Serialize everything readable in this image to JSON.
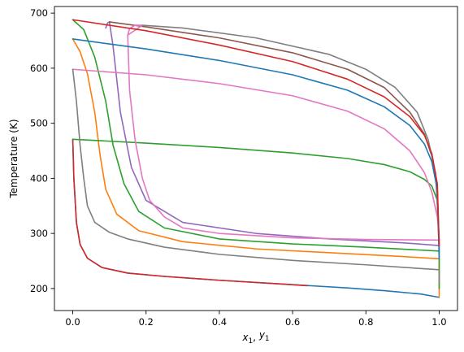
{
  "chart_data": {
    "type": "line",
    "title": "",
    "xlabel": "x1, y1",
    "ylabel": "Temperature (K)",
    "xlim": [
      -0.05,
      1.05
    ],
    "ylim": [
      160,
      712
    ],
    "xticks": [
      0.0,
      0.2,
      0.4,
      0.6,
      0.8,
      1.0
    ],
    "xtick_labels": [
      "0.0",
      "0.2",
      "0.4",
      "0.6",
      "0.8",
      "1.0"
    ],
    "yticks": [
      200,
      300,
      400,
      500,
      600,
      700
    ],
    "ytick_labels": [
      "200",
      "300",
      "400",
      "500",
      "600",
      "700"
    ],
    "grid": false,
    "legend": "none",
    "series": [
      {
        "color": "#1f77b4",
        "x": [
          0.0,
          0.003,
          0.01,
          0.02,
          0.04,
          0.08,
          0.15,
          0.25,
          0.4,
          0.55,
          0.65,
          0.75,
          0.85,
          0.95,
          1.0
        ],
        "y": [
          471,
          400,
          320,
          280,
          255,
          238,
          228,
          222,
          215,
          209,
          205,
          201,
          196,
          190,
          184
        ]
      },
      {
        "color": "#d62728",
        "x": [
          0.0,
          0.003,
          0.01,
          0.02,
          0.04,
          0.08,
          0.15,
          0.25,
          0.4,
          0.55,
          0.64
        ],
        "y": [
          471,
          400,
          320,
          280,
          255,
          238,
          228,
          222,
          215,
          209,
          205
        ]
      },
      {
        "color": "#ff7f0e",
        "x": [
          0.0,
          0.02,
          0.04,
          0.06,
          0.075,
          0.09,
          0.12,
          0.18,
          0.3,
          0.5,
          0.7,
          0.9,
          1.0,
          1.0
        ],
        "y": [
          653,
          630,
          590,
          520,
          440,
          380,
          335,
          305,
          285,
          272,
          265,
          258,
          254,
          185
        ]
      },
      {
        "color": "#2ca02c",
        "x": [
          0.0,
          0.03,
          0.06,
          0.09,
          0.11,
          0.14,
          0.18,
          0.25,
          0.4,
          0.6,
          0.8,
          1.0,
          1.0
        ],
        "y": [
          688,
          670,
          620,
          540,
          460,
          390,
          340,
          310,
          290,
          281,
          275,
          268,
          200
        ]
      },
      {
        "color": "#2ca02c",
        "x": [
          0.0,
          0.2,
          0.4,
          0.6,
          0.75,
          0.85,
          0.92,
          0.96,
          0.98,
          0.995,
          1.0
        ],
        "y": [
          471,
          464,
          456,
          446,
          436,
          425,
          412,
          398,
          386,
          360,
          268
        ]
      },
      {
        "color": "#9467bd",
        "x": [
          0.09,
          0.095,
          0.1,
          0.11,
          0.13,
          0.16,
          0.2,
          0.3,
          0.5,
          0.7,
          0.9,
          1.0,
          1.0
        ],
        "y": [
          673,
          682,
          684,
          640,
          520,
          420,
          360,
          320,
          300,
          290,
          283,
          278,
          265
        ]
      },
      {
        "color": "#8c564b",
        "x": [
          0.1,
          0.2,
          0.4,
          0.6,
          0.75,
          0.85,
          0.92,
          0.96,
          0.98,
          0.995,
          1.0
        ],
        "y": [
          684,
          675,
          655,
          628,
          598,
          565,
          520,
          480,
          440,
          380,
          278
        ]
      },
      {
        "color": "#e377c2",
        "x": [
          0.15,
          0.155,
          0.17,
          0.19,
          0.15,
          0.155,
          0.17,
          0.19,
          0.21,
          0.25,
          0.3,
          0.4,
          0.6,
          0.8,
          1.0,
          1.0
        ],
        "y": [
          660,
          672,
          678,
          678,
          660,
          560,
          470,
          400,
          360,
          330,
          310,
          300,
          292,
          289,
          288,
          275
        ]
      },
      {
        "color": "#e377c2",
        "x": [
          0.0,
          0.2,
          0.4,
          0.6,
          0.75,
          0.85,
          0.92,
          0.96,
          0.98,
          0.995,
          1.0
        ],
        "y": [
          598,
          588,
          572,
          550,
          522,
          490,
          450,
          410,
          375,
          330,
          290
        ]
      },
      {
        "color": "#7f7f7f",
        "x": [
          0.19,
          0.3,
          0.5,
          0.7,
          0.8,
          0.88,
          0.94,
          0.97,
          0.99,
          1.0
        ],
        "y": [
          678,
          673,
          655,
          625,
          598,
          565,
          520,
          470,
          410,
          288
        ]
      },
      {
        "color": "#7f7f7f",
        "x": [
          0.0,
          0.01,
          0.02,
          0.03,
          0.04,
          0.06,
          0.1,
          0.15,
          0.25,
          0.4,
          0.6,
          0.8,
          1.0,
          1.0
        ],
        "y": [
          598,
          540,
          460,
          400,
          350,
          320,
          302,
          290,
          275,
          262,
          251,
          243,
          234,
          210
        ]
      },
      {
        "color": "#1f77b4",
        "x": [
          0.0,
          0.2,
          0.4,
          0.6,
          0.75,
          0.85,
          0.92,
          0.96,
          0.98,
          0.995,
          1.0
        ],
        "y": [
          653,
          635,
          614,
          588,
          560,
          530,
          496,
          462,
          430,
          380,
          254
        ]
      },
      {
        "color": "#d62728",
        "x": [
          0.0,
          0.2,
          0.4,
          0.6,
          0.75,
          0.85,
          0.92,
          0.96,
          0.98,
          0.995,
          1.0
        ],
        "y": [
          688,
          668,
          642,
          612,
          580,
          548,
          512,
          478,
          445,
          390,
          278
        ]
      }
    ]
  }
}
